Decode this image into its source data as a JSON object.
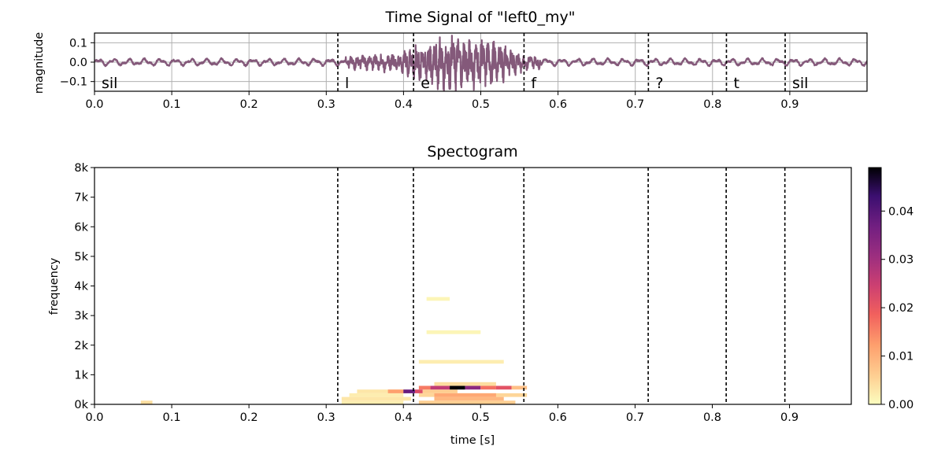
{
  "chart_data": [
    {
      "type": "line",
      "title": "Time Signal of \"left0_my\"",
      "xlabel": "",
      "ylabel": "magnitude",
      "xlim": [
        0.0,
        1.0
      ],
      "ylim": [
        -0.15,
        0.15
      ],
      "xticks": [
        "0.0",
        "0.1",
        "0.2",
        "0.3",
        "0.4",
        "0.5",
        "0.6",
        "0.7",
        "0.8",
        "0.9"
      ],
      "yticks": [
        "0.1",
        "0.0",
        "−0.1"
      ],
      "grid": true,
      "line_color": "#84597A",
      "boundaries": [
        0.315,
        0.413,
        0.556,
        0.717,
        0.818,
        0.894
      ],
      "segments": [
        {
          "label": "sil",
          "start": 0.0
        },
        {
          "label": "l",
          "start": 0.315
        },
        {
          "label": "e",
          "start": 0.413
        },
        {
          "label": "f",
          "start": 0.556
        },
        {
          "label": "?",
          "start": 0.717
        },
        {
          "label": "t",
          "start": 0.818
        },
        {
          "label": "sil",
          "start": 0.894
        }
      ],
      "envelope": {
        "t": [
          0.0,
          0.315,
          0.33,
          0.4,
          0.413,
          0.43,
          0.47,
          0.52,
          0.545,
          0.556,
          0.6,
          0.72,
          0.82,
          0.9,
          1.0
        ],
        "amp": [
          0.02,
          0.02,
          0.035,
          0.05,
          0.11,
          0.13,
          0.14,
          0.12,
          0.07,
          0.04,
          0.02,
          0.02,
          0.02,
          0.02,
          0.02
        ]
      }
    },
    {
      "type": "heatmap",
      "title": "Spectogram",
      "xlabel": "time [s]",
      "ylabel": "frequency",
      "xlim": [
        0.0,
        0.98
      ],
      "ylim": [
        0,
        8000
      ],
      "xticks": [
        "0.0",
        "0.1",
        "0.2",
        "0.3",
        "0.4",
        "0.5",
        "0.6",
        "0.7",
        "0.8",
        "0.9"
      ],
      "yticks": [
        "0k",
        "1k",
        "2k",
        "3k",
        "4k",
        "5k",
        "6k",
        "7k",
        "8k"
      ],
      "colormap": "magma_r",
      "colorbar": {
        "min": 0.0,
        "max": 0.049,
        "ticks": [
          "0.00",
          "0.01",
          "0.02",
          "0.03",
          "0.04"
        ]
      },
      "boundaries": [
        0.315,
        0.413,
        0.556,
        0.717,
        0.818,
        0.894
      ],
      "cells": [
        {
          "t0": 0.06,
          "t1": 0.075,
          "f0": 0,
          "f1": 125,
          "v": 0.004
        },
        {
          "t0": 0.32,
          "t1": 0.4,
          "f0": 0,
          "f1": 125,
          "v": 0.002
        },
        {
          "t0": 0.32,
          "t1": 0.41,
          "f0": 125,
          "f1": 250,
          "v": 0.003
        },
        {
          "t0": 0.33,
          "t1": 0.4,
          "f0": 250,
          "f1": 375,
          "v": 0.002
        },
        {
          "t0": 0.34,
          "t1": 0.405,
          "f0": 375,
          "f1": 500,
          "v": 0.003
        },
        {
          "t0": 0.42,
          "t1": 0.545,
          "f0": 0,
          "f1": 125,
          "v": 0.006
        },
        {
          "t0": 0.44,
          "t1": 0.53,
          "f0": 125,
          "f1": 250,
          "v": 0.009
        },
        {
          "t0": 0.42,
          "t1": 0.56,
          "f0": 250,
          "f1": 375,
          "v": 0.005
        },
        {
          "t0": 0.44,
          "t1": 0.52,
          "f0": 250,
          "f1": 375,
          "v": 0.011
        },
        {
          "t0": 0.38,
          "t1": 0.4,
          "f0": 375,
          "f1": 500,
          "v": 0.012
        },
        {
          "t0": 0.4,
          "t1": 0.415,
          "f0": 375,
          "f1": 500,
          "v": 0.038
        },
        {
          "t0": 0.415,
          "t1": 0.425,
          "f0": 375,
          "f1": 500,
          "v": 0.022
        },
        {
          "t0": 0.425,
          "t1": 0.47,
          "f0": 375,
          "f1": 500,
          "v": 0.006
        },
        {
          "t0": 0.42,
          "t1": 0.435,
          "f0": 500,
          "f1": 625,
          "v": 0.016
        },
        {
          "t0": 0.435,
          "t1": 0.46,
          "f0": 500,
          "f1": 625,
          "v": 0.026
        },
        {
          "t0": 0.46,
          "t1": 0.48,
          "f0": 500,
          "f1": 625,
          "v": 0.049
        },
        {
          "t0": 0.48,
          "t1": 0.5,
          "f0": 500,
          "f1": 625,
          "v": 0.033
        },
        {
          "t0": 0.5,
          "t1": 0.52,
          "f0": 500,
          "f1": 625,
          "v": 0.017
        },
        {
          "t0": 0.52,
          "t1": 0.54,
          "f0": 500,
          "f1": 625,
          "v": 0.021
        },
        {
          "t0": 0.54,
          "t1": 0.56,
          "f0": 500,
          "f1": 625,
          "v": 0.008
        },
        {
          "t0": 0.44,
          "t1": 0.52,
          "f0": 625,
          "f1": 750,
          "v": 0.004
        },
        {
          "t0": 0.42,
          "t1": 0.53,
          "f0": 1375,
          "f1": 1500,
          "v": 0.002
        },
        {
          "t0": 0.43,
          "t1": 0.5,
          "f0": 2375,
          "f1": 2500,
          "v": 0.001
        },
        {
          "t0": 0.43,
          "t1": 0.46,
          "f0": 3500,
          "f1": 3625,
          "v": 0.001
        }
      ]
    }
  ]
}
